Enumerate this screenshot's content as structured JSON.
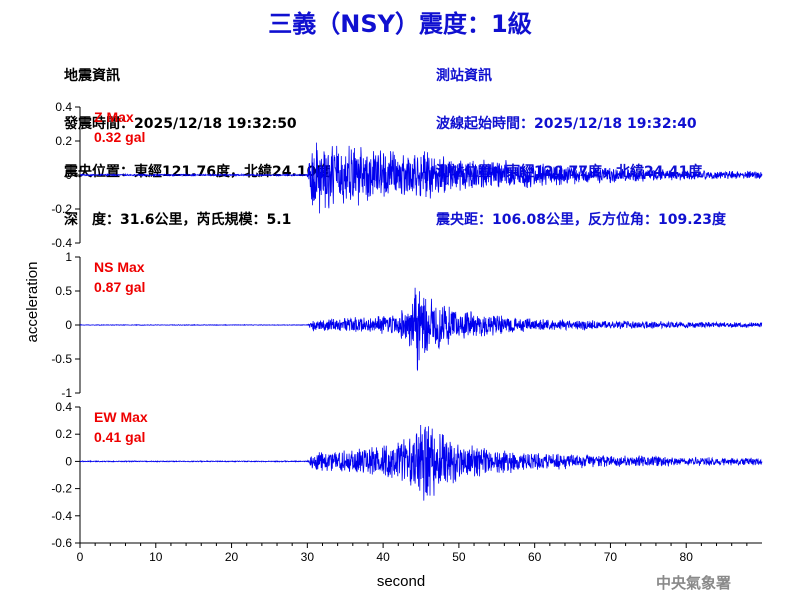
{
  "title": "三義（NSY）震度：1級",
  "quake_info": {
    "heading": "地震資訊",
    "origin_time": "發震時間：2025/12/18 19:32:50",
    "epicenter": "震央位置：東經121.76度，北緯24.10度",
    "depth_magnitude": "深　度：31.6公里，芮氏規模：5.1"
  },
  "station_info": {
    "heading": "測站資訊",
    "wave_onset": "波線起始時間：2025/12/18 19:32:40",
    "location": "測站位置：東經120.77度，北緯24.41度",
    "distance_azimuth": "震央距：106.08公里，反方位角：109.23度"
  },
  "agency": "中央氣象署",
  "colors": {
    "title": "#1010d0",
    "trace": "#0000ee",
    "max_label": "#ee0000",
    "axis": "#000000"
  },
  "chart_data": [
    {
      "type": "line",
      "component": "Z",
      "max_label": "Z Max",
      "max_value": "0.32 gal",
      "ylim": [
        -0.4,
        0.4
      ],
      "yticks": [
        -0.4,
        -0.2,
        0,
        0.2,
        0.4
      ],
      "ytick_labels": [
        "-0.4",
        "-0.2",
        "0",
        "0.2",
        "0.4"
      ],
      "envelope": {
        "t": [
          0,
          30,
          30.8,
          32,
          35,
          40,
          45,
          50,
          55,
          60,
          65,
          70,
          80,
          90
        ],
        "amp": [
          0.005,
          0.005,
          0.3,
          0.22,
          0.2,
          0.17,
          0.15,
          0.12,
          0.1,
          0.08,
          0.06,
          0.05,
          0.03,
          0.025
        ]
      }
    },
    {
      "type": "line",
      "component": "NS",
      "max_label": "NS Max",
      "max_value": "0.87 gal",
      "ylim": [
        -1,
        1
      ],
      "yticks": [
        -1,
        -0.5,
        0,
        0.5,
        1
      ],
      "ytick_labels": [
        "-1",
        "-0.5",
        "0",
        "0.5",
        "1"
      ],
      "envelope": {
        "t": [
          0,
          30,
          30.8,
          35,
          40,
          43,
          44.5,
          46,
          50,
          55,
          60,
          70,
          80,
          90
        ],
        "amp": [
          0.005,
          0.005,
          0.1,
          0.12,
          0.14,
          0.3,
          0.8,
          0.45,
          0.25,
          0.15,
          0.1,
          0.07,
          0.05,
          0.04
        ]
      }
    },
    {
      "type": "line",
      "component": "EW",
      "max_label": "EW Max",
      "max_value": "0.41 gal",
      "ylim": [
        -0.6,
        0.4
      ],
      "yticks": [
        -0.6,
        -0.4,
        -0.2,
        0,
        0.2,
        0.4
      ],
      "ytick_labels": [
        "-0.6",
        "-0.4",
        "-0.2",
        "0",
        "0.2",
        "0.4"
      ],
      "envelope": {
        "t": [
          0,
          30,
          30.8,
          35,
          40,
          44,
          45.5,
          47,
          50,
          55,
          60,
          70,
          80,
          90
        ],
        "amp": [
          0.004,
          0.004,
          0.08,
          0.1,
          0.12,
          0.2,
          0.38,
          0.25,
          0.15,
          0.1,
          0.07,
          0.05,
          0.035,
          0.03
        ]
      }
    }
  ],
  "x_axis": {
    "label": "second",
    "xlim": [
      0,
      90
    ],
    "ticks": [
      0,
      10,
      20,
      30,
      40,
      50,
      60,
      70,
      80
    ],
    "tick_labels": [
      "0",
      "10",
      "20",
      "30",
      "40",
      "50",
      "60",
      "70",
      "80"
    ]
  },
  "y_axis_label": "acceleration"
}
